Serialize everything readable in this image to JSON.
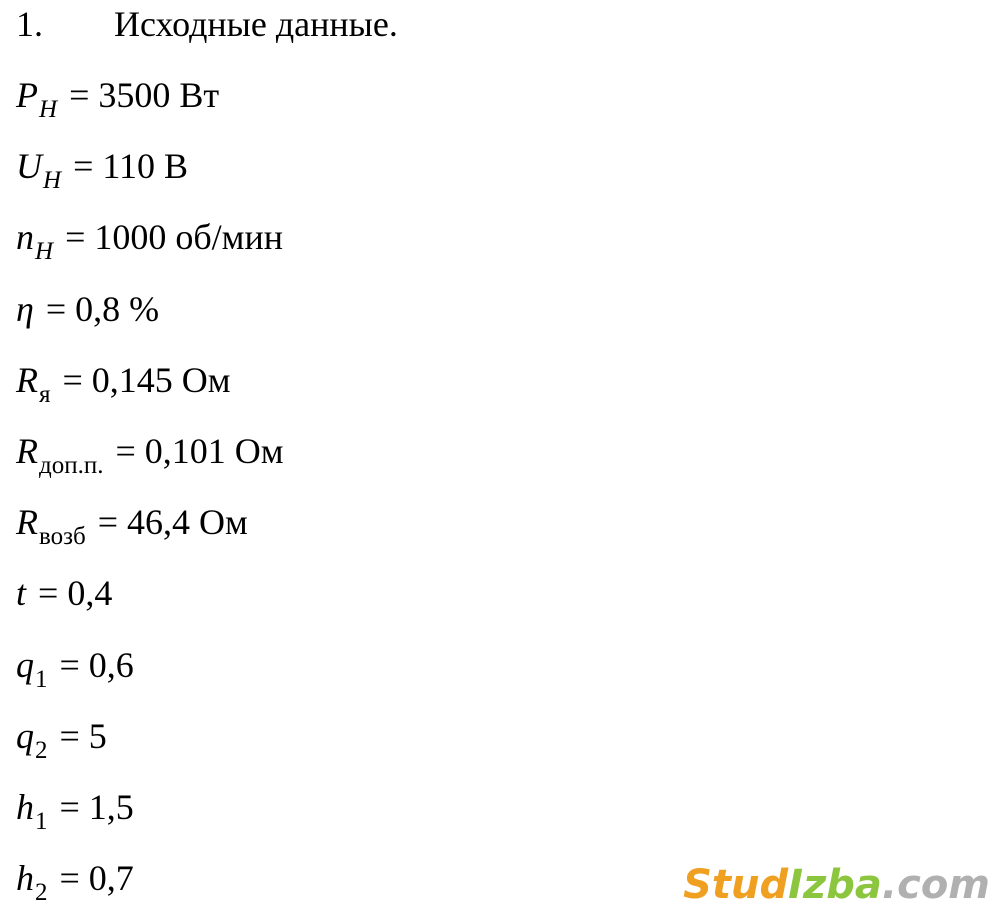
{
  "heading": {
    "number": "1.",
    "title": "Исходные данные."
  },
  "lines": [
    {
      "symbol": "P",
      "sub": "H",
      "sub_italic": true,
      "rest": "= 3500 Вт"
    },
    {
      "symbol": "U",
      "sub": "H",
      "sub_italic": true,
      "rest": "= 110 В"
    },
    {
      "symbol": "n",
      "sub": "H",
      "sub_italic": true,
      "rest": "= 1000 об/мин"
    },
    {
      "symbol": "η",
      "sub": "",
      "sub_italic": false,
      "rest": "= 0,8 %"
    },
    {
      "symbol": "R",
      "sub": "я",
      "sub_italic": false,
      "rest": "= 0,145 Ом"
    },
    {
      "symbol": "R",
      "sub": "доп.п.",
      "sub_italic": false,
      "rest": "= 0,101 Ом"
    },
    {
      "symbol": "R",
      "sub": "возб",
      "sub_italic": false,
      "rest": "= 46,4 Ом"
    },
    {
      "symbol": "t",
      "sub": "",
      "sub_italic": false,
      "rest": "= 0,4"
    },
    {
      "symbol": "q",
      "sub": "1",
      "sub_italic": false,
      "rest": "= 0,6"
    },
    {
      "symbol": "q",
      "sub": "2",
      "sub_italic": false,
      "rest": "= 5"
    },
    {
      "symbol": "h",
      "sub": "1",
      "sub_italic": false,
      "rest": "= 1,5"
    },
    {
      "symbol": "h",
      "sub": "2",
      "sub_italic": false,
      "rest": "= 0,7"
    }
  ],
  "watermark": {
    "part1": "Stud",
    "part2": "Izba",
    "part3": ".com"
  }
}
